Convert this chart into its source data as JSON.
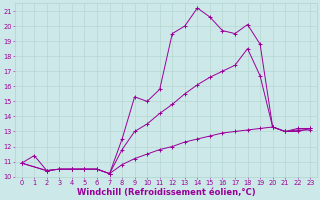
{
  "bg_color": "#cde8e8",
  "grid_color": "#b0d4cc",
  "line_color": "#990099",
  "marker": "+",
  "xlabel": "Windchill (Refroidissement éolien,°C)",
  "xlim": [
    -0.5,
    23.5
  ],
  "ylim": [
    10,
    21.5
  ],
  "xticks": [
    0,
    1,
    2,
    3,
    4,
    5,
    6,
    7,
    8,
    9,
    10,
    11,
    12,
    13,
    14,
    15,
    16,
    17,
    18,
    19,
    20,
    21,
    22,
    23
  ],
  "yticks": [
    10,
    11,
    12,
    13,
    14,
    15,
    16,
    17,
    18,
    19,
    20,
    21
  ],
  "line1_x": [
    0,
    1,
    2,
    3,
    4,
    5,
    6,
    7,
    8,
    9,
    10,
    11,
    12,
    13,
    14,
    15,
    16,
    17,
    18,
    19,
    20,
    21,
    22,
    23
  ],
  "line1_y": [
    10.9,
    11.4,
    10.4,
    10.5,
    10.5,
    10.5,
    10.5,
    10.2,
    12.5,
    15.3,
    15.0,
    15.8,
    19.5,
    20.0,
    21.2,
    20.6,
    19.7,
    19.5,
    20.1,
    18.8,
    13.3,
    13.0,
    13.2,
    13.2
  ],
  "line2_x": [
    0,
    2,
    3,
    4,
    5,
    6,
    7,
    8,
    9,
    10,
    11,
    12,
    13,
    14,
    15,
    16,
    17,
    18,
    19,
    20,
    21,
    22,
    23
  ],
  "line2_y": [
    10.9,
    10.4,
    10.5,
    10.5,
    10.5,
    10.5,
    10.2,
    11.8,
    13.0,
    13.5,
    14.2,
    14.8,
    15.5,
    16.1,
    16.6,
    17.0,
    17.4,
    18.5,
    16.7,
    13.3,
    13.0,
    13.0,
    13.2
  ],
  "line3_x": [
    0,
    2,
    3,
    4,
    5,
    6,
    7,
    8,
    9,
    10,
    11,
    12,
    13,
    14,
    15,
    16,
    17,
    18,
    19,
    20,
    21,
    22,
    23
  ],
  "line3_y": [
    10.9,
    10.4,
    10.5,
    10.5,
    10.5,
    10.5,
    10.2,
    10.8,
    11.2,
    11.5,
    11.8,
    12.0,
    12.3,
    12.5,
    12.7,
    12.9,
    13.0,
    13.1,
    13.2,
    13.3,
    13.0,
    13.1,
    13.1
  ],
  "tick_fontsize": 4.8,
  "label_fontsize": 6.0,
  "linewidth": 0.7,
  "markersize": 2.5,
  "markeredgewidth": 0.7
}
